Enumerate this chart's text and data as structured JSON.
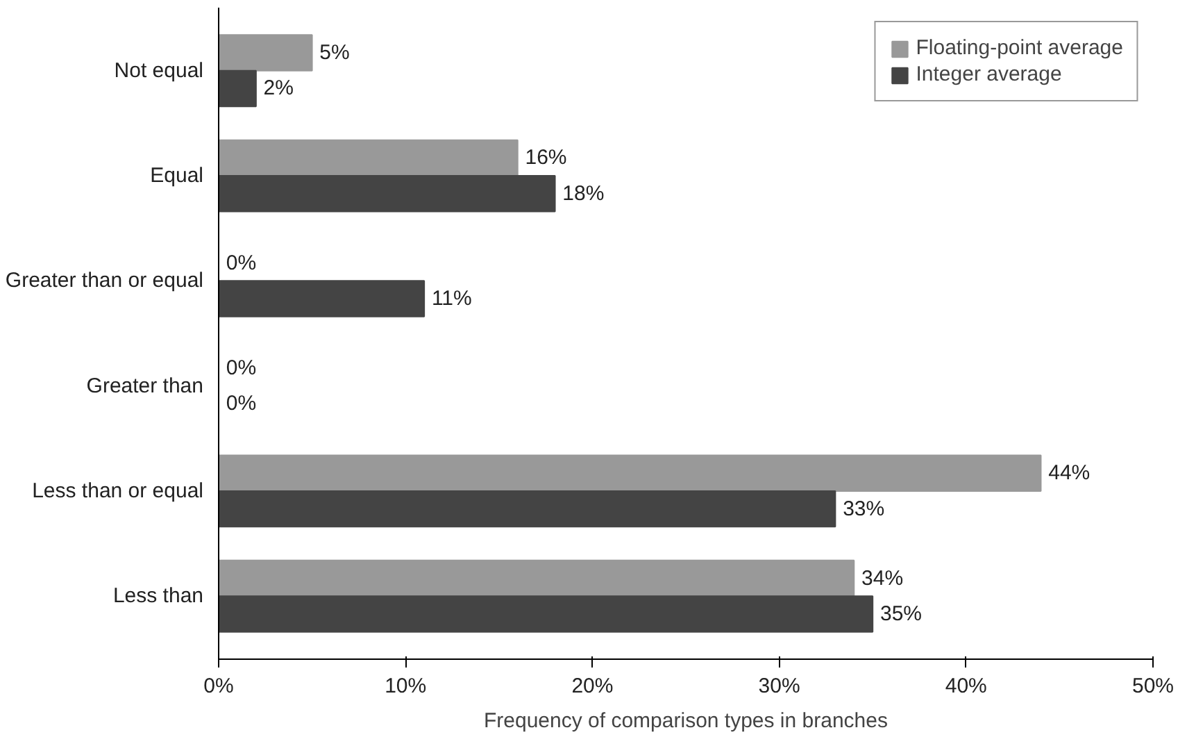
{
  "chart_data": {
    "type": "bar",
    "orientation": "horizontal",
    "xlabel": "Frequency of comparison types in branches",
    "categories": [
      "Not equal",
      "Equal",
      "Greater than or equal",
      "Greater than",
      "Less than or equal",
      "Less than"
    ],
    "series": [
      {
        "name": "Floating-point average",
        "color": "#999999",
        "values": [
          5,
          16,
          0,
          0,
          44,
          34
        ],
        "value_labels": [
          "5%",
          "16%",
          "0%",
          "0%",
          "44%",
          "34%"
        ]
      },
      {
        "name": "Integer average",
        "color": "#444444",
        "values": [
          2,
          18,
          11,
          0,
          33,
          35
        ],
        "value_labels": [
          "2%",
          "18%",
          "11%",
          "0%",
          "33%",
          "35%"
        ]
      }
    ],
    "xlim": [
      0,
      50
    ],
    "xticks": [
      {
        "value": 0,
        "label": "0%"
      },
      {
        "value": 10,
        "label": "10%"
      },
      {
        "value": 20,
        "label": "20%"
      },
      {
        "value": 30,
        "label": "30%"
      },
      {
        "value": 40,
        "label": "40%"
      },
      {
        "value": 50,
        "label": "50%"
      }
    ],
    "grid": false,
    "legend": "top right"
  }
}
